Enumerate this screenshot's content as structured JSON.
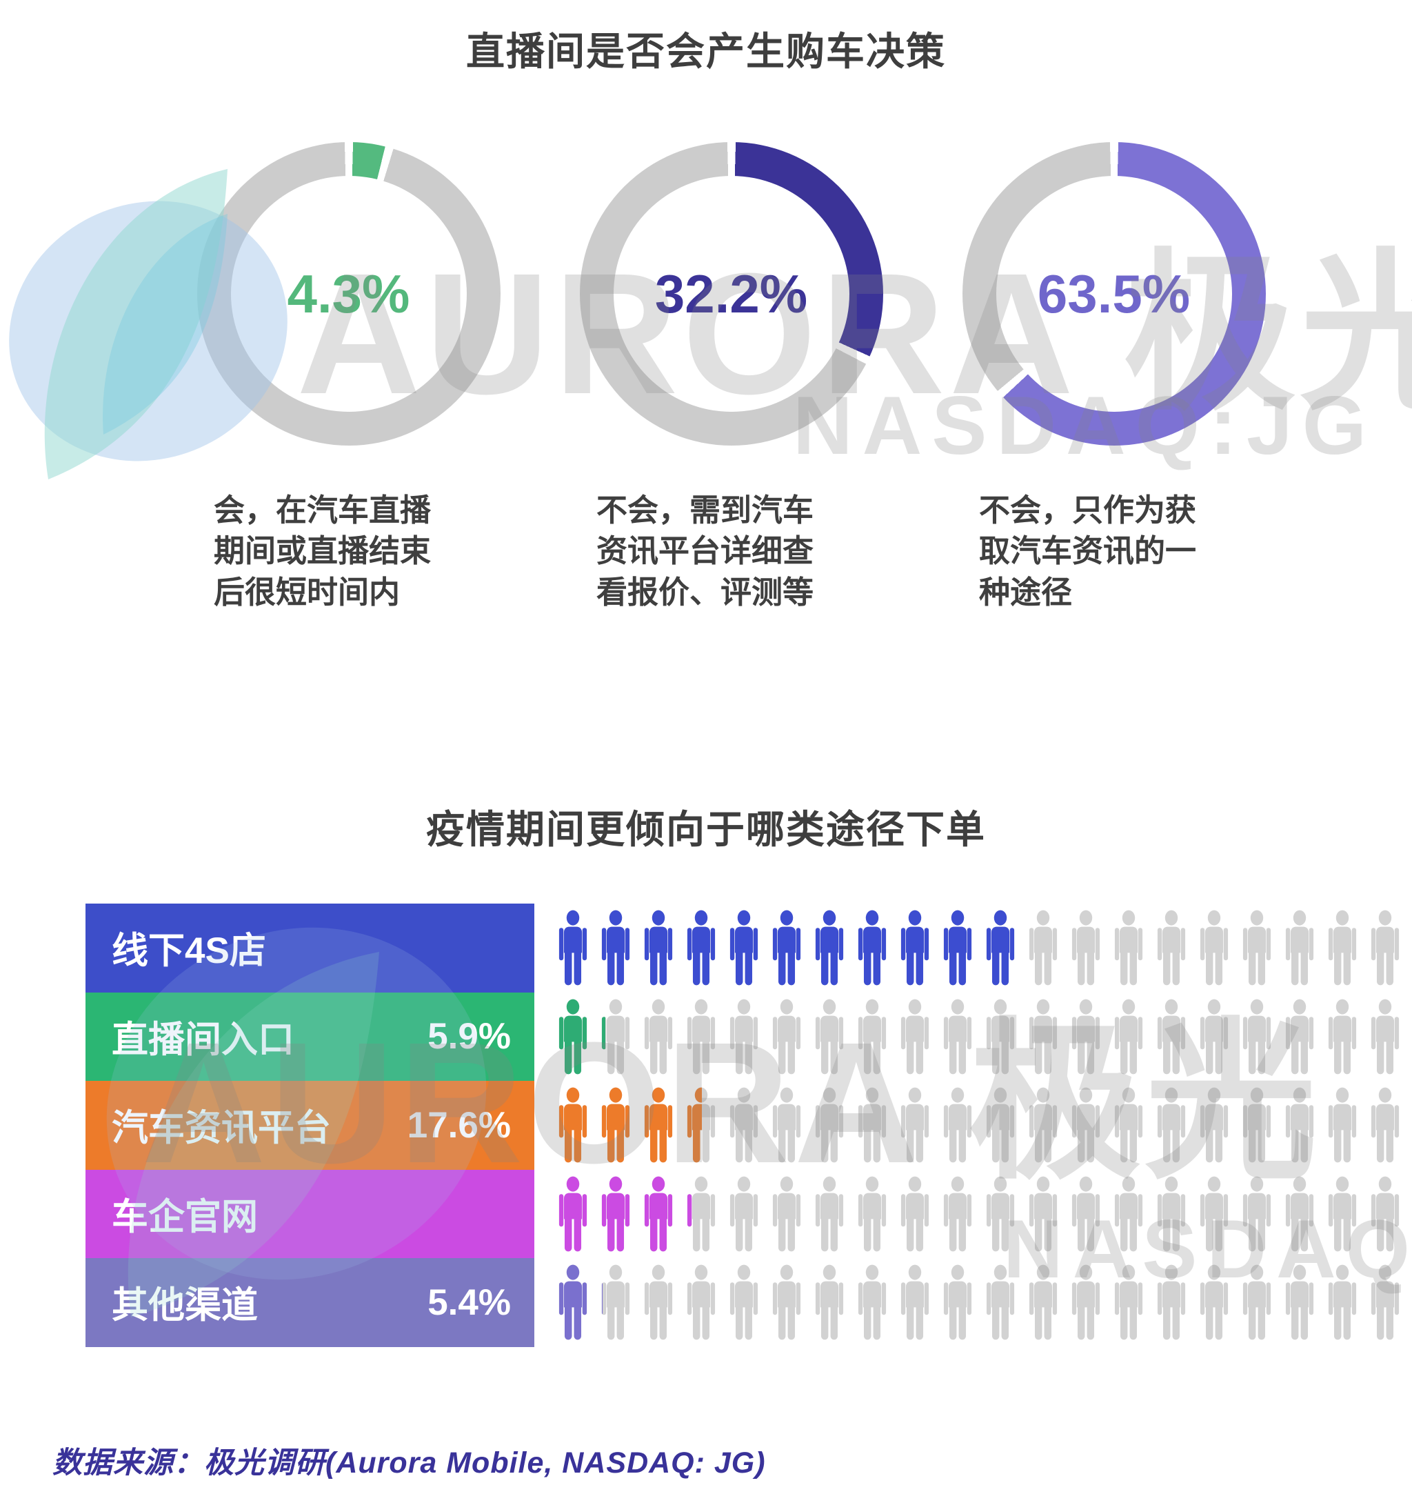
{
  "section1": {
    "title": "直播间是否会产生购车决策",
    "ring_gray": "#cccccc",
    "donuts": [
      {
        "label": "4.3%",
        "value": 4.3,
        "color": "#54ba7f",
        "text_color": "#54b87c",
        "desc": "会，在汽车直播期间或直播结束后很短时间内"
      },
      {
        "label": "32.2%",
        "value": 32.2,
        "color": "#3b3397",
        "text_color": "#3b3397",
        "desc": "不会，需到汽车资讯平台详细查看报价、评测等"
      },
      {
        "label": "63.5%",
        "value": 63.5,
        "color": "#7d72d4",
        "text_color": "#6f66cb",
        "desc": "不会，只作为获取汽车资讯的一种途径"
      }
    ]
  },
  "section2": {
    "title": "疫情期间更倾向于哪类途径下单",
    "total_icons_per_row": 20,
    "icon_gray": "#d2d2d2",
    "rows": [
      {
        "label": "线下4S店",
        "pct_label": "",
        "icons_filled": 11,
        "color": "#3d4ec9",
        "icon_color": "#3c4dd0"
      },
      {
        "label": "直播间入口",
        "pct_label": "5.9%",
        "icons_filled": 1.18,
        "color": "#2bb673",
        "icon_color": "#2eac74"
      },
      {
        "label": "汽车资讯平台",
        "pct_label": "17.6%",
        "icons_filled": 3.52,
        "color": "#ed7b2a",
        "icon_color": "#ed7b2a"
      },
      {
        "label": "车企官网",
        "pct_label": "",
        "icons_filled": 3.22,
        "color": "#cb4be2",
        "icon_color": "#cb4be2"
      },
      {
        "label": "其他渠道",
        "pct_label": "5.4%",
        "icons_filled": 1.08,
        "color": "#7c78c2",
        "icon_color": "#7a70ce"
      }
    ]
  },
  "footer": {
    "source": "数据来源：极光调研(Aurora Mobile, NASDAQ: JG)"
  },
  "watermark": {
    "brand": "AURORA 极光",
    "ticker": "NASDAQ:JG"
  },
  "chart_data": [
    {
      "type": "pie",
      "title": "直播间是否会产生购车决策",
      "unit": "%",
      "style": "three separate donut gauges on gray rings, value centered in each",
      "slices": [
        {
          "label": "会，在汽车直播期间或直播结束后很短时间内",
          "value": 4.3,
          "color": "#54ba7f"
        },
        {
          "label": "不会，需到汽车资讯平台详细查看报价、评测等",
          "value": 32.2,
          "color": "#3b3397"
        },
        {
          "label": "不会，只作为获取汽车资讯的一种途径",
          "value": 63.5,
          "color": "#7d72d4"
        }
      ]
    },
    {
      "type": "bar",
      "title": "疫情期间更倾向于哪类途径下单",
      "unit": "%",
      "style": "pictogram bar chart, 20 person icons per row, each icon = 5%",
      "categories": [
        "线下4S店",
        "直播间入口",
        "汽车资讯平台",
        "车企官网",
        "其他渠道"
      ],
      "values": [
        55,
        5.9,
        17.6,
        16.1,
        5.4
      ],
      "value_labels_shown": [
        "",
        "5.9%",
        "17.6%",
        "",
        "5.4%"
      ],
      "colors": [
        "#3d4ec9",
        "#2bb673",
        "#ed7b2a",
        "#cb4be2",
        "#7c78c2"
      ]
    }
  ]
}
